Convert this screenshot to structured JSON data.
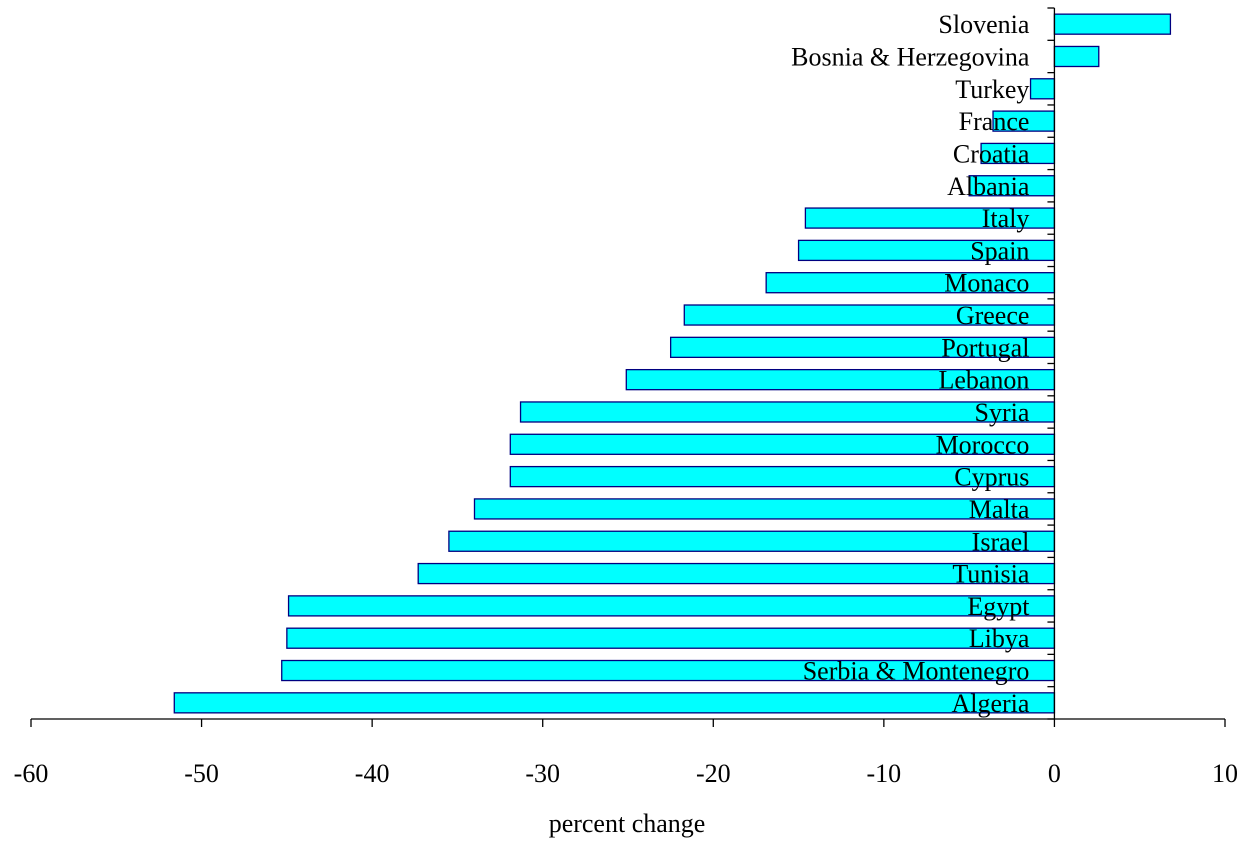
{
  "chart_data": {
    "type": "bar",
    "orientation": "horizontal",
    "title": "",
    "xlabel": "percent change",
    "ylabel": "",
    "xlim": [
      -60,
      10
    ],
    "xticks": [
      -60,
      -50,
      -40,
      -30,
      -20,
      -10,
      0,
      10
    ],
    "xtick_labels": [
      "-60",
      "-50",
      "-40",
      "-30",
      "-20",
      "-10",
      "0",
      "10"
    ],
    "grid": false,
    "legend": "none",
    "categories": [
      "Slovenia",
      "Bosnia & Herzegovina",
      "Turkey",
      "France",
      "Croatia",
      "Albania",
      "Italy",
      "Spain",
      "Monaco",
      "Greece",
      "Portugal",
      "Lebanon",
      "Syria",
      "Morocco",
      "Cyprus",
      "Malta",
      "Israel",
      "Tunisia",
      "Egypt",
      "Libya",
      "Serbia & Montenegro",
      "Algeria"
    ],
    "values": [
      6.8,
      2.6,
      -1.4,
      -3.6,
      -4.3,
      -5.0,
      -14.6,
      -15.0,
      -16.9,
      -21.7,
      -22.5,
      -25.1,
      -31.3,
      -31.9,
      -31.9,
      -34.0,
      -35.5,
      -37.3,
      -44.9,
      -45.0,
      -45.3,
      -51.6
    ],
    "colors": {
      "bar_fill": "#00ffff",
      "bar_stroke": "#000080",
      "axis": "#000000"
    }
  }
}
